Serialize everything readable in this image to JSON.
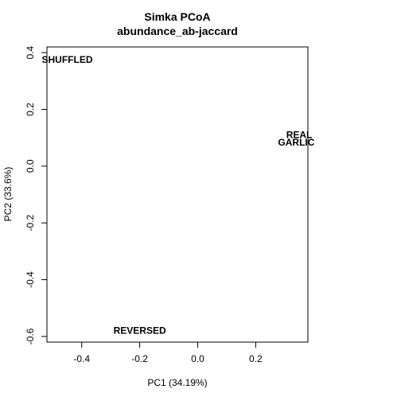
{
  "chart_data": {
    "type": "scatter",
    "title": "Simka PCoA",
    "subtitle": "abundance_ab-jaccard",
    "xlabel": "PC1 (34.19%)",
    "ylabel": "PC2 (33.6%)",
    "xlim": [
      -0.52,
      0.38
    ],
    "ylim": [
      -0.62,
      0.42
    ],
    "xticks": [
      -0.4,
      -0.2,
      0.0,
      0.2
    ],
    "xtick_labels": [
      "-0.4",
      "-0.2",
      "0.0",
      "0.2"
    ],
    "yticks": [
      -0.6,
      -0.4,
      -0.2,
      0.0,
      0.2,
      0.4
    ],
    "ytick_labels": [
      "-0.6",
      "-0.4",
      "-0.2",
      "0.0",
      "0.2",
      "0.4"
    ],
    "grid": false,
    "legend": "none",
    "points": [
      {
        "label": "SHUFFLED",
        "x": -0.45,
        "y": 0.375
      },
      {
        "label": "REAL",
        "x": 0.35,
        "y": 0.11
      },
      {
        "label": "GARLIC",
        "x": 0.34,
        "y": 0.083
      },
      {
        "label": "REVERSED",
        "x": -0.2,
        "y": -0.58
      }
    ]
  }
}
